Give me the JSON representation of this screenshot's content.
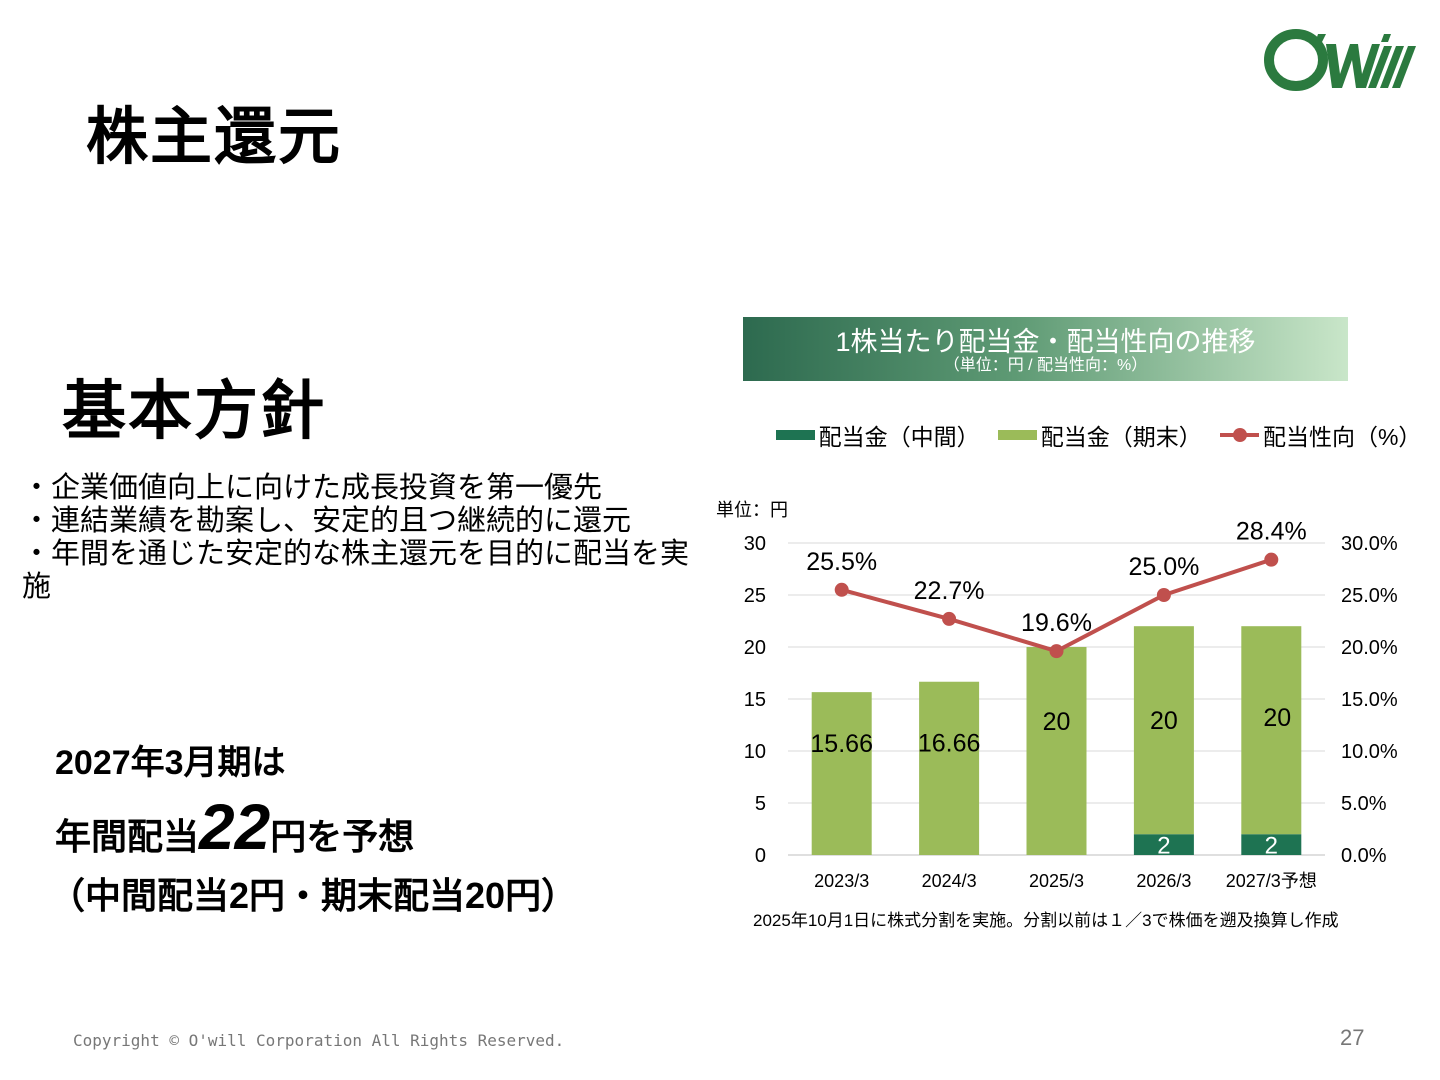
{
  "page": {
    "title": "株主還元",
    "policy_heading": "基本方針",
    "policy_items": [
      "・企業価値向上に向けた成長投資を第一優先",
      "・連結業績を勘案し、安定的且つ継続的に還元",
      "・年間を通じた安定的な株主還元を目的に配当を実施"
    ],
    "forecast": {
      "line1": "2027年3月期は",
      "line2_pre": "年間配当",
      "line2_big": "22",
      "line2_post": "円を予想",
      "line3": "（中間配当2円・期末配当20円）"
    },
    "copyright": "Copyright © O'will Corporation All Rights Reserved.",
    "page_number": "27"
  },
  "chart_header": {
    "title": "1株当たり配当金・配当性向の推移",
    "subtitle": "（単位：円 / 配当性向：%）"
  },
  "legend": {
    "interim": "配当金（中間）",
    "year_end": "配当金（期末）",
    "payout": "配当性向（%）"
  },
  "unit_label": "単位：円",
  "footnote": "2025年10月1日に株式分割を実施。分割以前は１／3で株価を遡及換算し作成",
  "colors": {
    "interim": "#1e7352",
    "year_end": "#9bbb59",
    "payout": "#c0504d"
  },
  "chart_data": {
    "type": "bar",
    "stacked": true,
    "categories": [
      "2023/3",
      "2024/3",
      "2025/3",
      "2026/3",
      "2027/3予想"
    ],
    "series": [
      {
        "name": "配当金（中間）",
        "values": [
          0,
          0,
          0,
          2,
          2
        ],
        "labels": [
          "",
          "",
          "",
          "2",
          "2"
        ]
      },
      {
        "name": "配当金（期末）",
        "values": [
          15.66,
          16.66,
          20,
          20,
          20
        ],
        "labels": [
          "15.66",
          "16.66",
          "20",
          "20",
          "20"
        ]
      },
      {
        "name": "配当性向（%）",
        "type": "line",
        "axis": "right",
        "values": [
          25.5,
          22.7,
          19.6,
          25.0,
          28.4
        ],
        "labels": [
          "25.5%",
          "22.7%",
          "19.6%",
          "25.0%",
          "28.4%"
        ]
      }
    ],
    "y_left": {
      "min": 0,
      "max": 30,
      "ticks": [
        "0",
        "5",
        "10",
        "15",
        "20",
        "25",
        "30"
      ]
    },
    "y_right": {
      "min": 0,
      "max": 30,
      "ticks": [
        "0.0%",
        "5.0%",
        "10.0%",
        "15.0%",
        "20.0%",
        "25.0%",
        "30.0%"
      ]
    },
    "grid": true,
    "legend_position": "top"
  }
}
